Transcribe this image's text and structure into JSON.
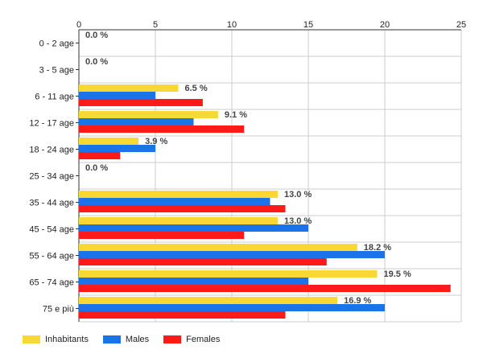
{
  "chart_data": {
    "type": "bar",
    "orientation": "horizontal",
    "categories": [
      "0 - 2 age",
      "3 - 5 age",
      "6 - 11 age",
      "12 - 17 age",
      "18 - 24 age",
      "25 - 34 age",
      "35 - 44 age",
      "45 - 54 age",
      "55 - 64 age",
      "65 - 74 age",
      "75 e più"
    ],
    "series": [
      {
        "name": "Inhabitants",
        "color": "#f9d833",
        "values": [
          0,
          0,
          6.5,
          9.1,
          3.9,
          0,
          13.0,
          13.0,
          18.2,
          19.5,
          16.9
        ]
      },
      {
        "name": "Males",
        "color": "#1a73e8",
        "values": [
          0,
          0,
          5,
          7.5,
          5,
          0,
          12.5,
          15,
          20,
          15,
          20
        ]
      },
      {
        "name": "Females",
        "color": "#ff1a1a",
        "values": [
          0,
          0,
          8.1,
          10.8,
          2.7,
          0,
          13.5,
          10.8,
          16.2,
          24.3,
          13.5
        ]
      }
    ],
    "data_labels": [
      "0.0 %",
      "0.0 %",
      "6.5 %",
      "9.1 %",
      "3.9 %",
      "0.0 %",
      "13.0 %",
      "13.0 %",
      "18.2 %",
      "19.5 %",
      "16.9 %"
    ],
    "x_ticks": [
      "0",
      "5",
      "10",
      "15",
      "20",
      "25"
    ],
    "xlim": [
      0,
      25
    ],
    "grid": true,
    "legend_position": "bottom-left"
  }
}
